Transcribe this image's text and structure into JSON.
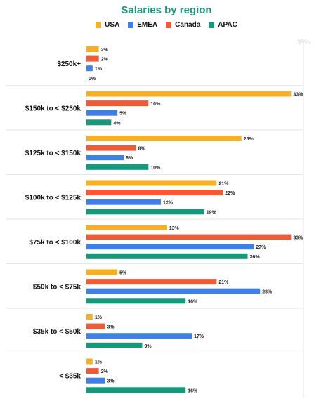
{
  "chart_data": {
    "type": "bar",
    "orientation": "horizontal",
    "title": "Salaries by region",
    "categories": [
      "$250k+",
      "$150k to < $250k",
      "$125k to < $150k",
      "$100k to < $125k",
      "$75k to < $100k",
      "$50k to < $75k",
      "$35k to < $50k",
      "< $35k"
    ],
    "series": [
      {
        "name": "USA",
        "color": "#f5b027",
        "values": [
          2,
          33,
          25,
          21,
          13,
          5,
          1,
          1
        ]
      },
      {
        "name": "EMEA",
        "color": "#3f7fe6",
        "values": [
          1,
          5,
          6,
          12,
          27,
          28,
          17,
          3
        ]
      },
      {
        "name": "Canada",
        "color": "#f05a37",
        "values": [
          2,
          10,
          8,
          22,
          33,
          21,
          3,
          2
        ]
      },
      {
        "name": "APAC",
        "color": "#16987a",
        "values": [
          0,
          4,
          10,
          19,
          26,
          16,
          9,
          16
        ]
      }
    ],
    "bar_order": [
      "USA",
      "Canada",
      "EMEA",
      "APAC"
    ],
    "value_suffix": "%",
    "xlim": [
      0,
      35
    ],
    "x_tick_label": "35%",
    "grid": false,
    "legend_position": "top-center"
  }
}
